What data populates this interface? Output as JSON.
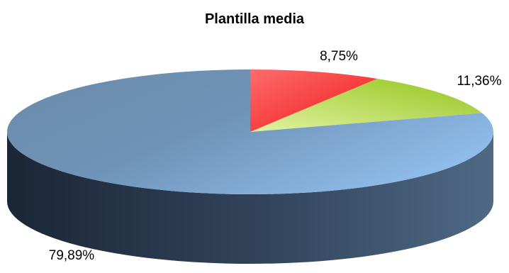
{
  "chart_data": {
    "type": "pie",
    "title": "Plantilla media",
    "three_d": true,
    "slices": [
      {
        "value": 8.75,
        "label": "8,75%",
        "color": "#f02424"
      },
      {
        "value": 11.36,
        "label": "11,36%",
        "color": "#a6d22e"
      },
      {
        "value": 79.89,
        "label": "79,89%",
        "color": "#7faedc"
      }
    ],
    "legend": "none"
  }
}
